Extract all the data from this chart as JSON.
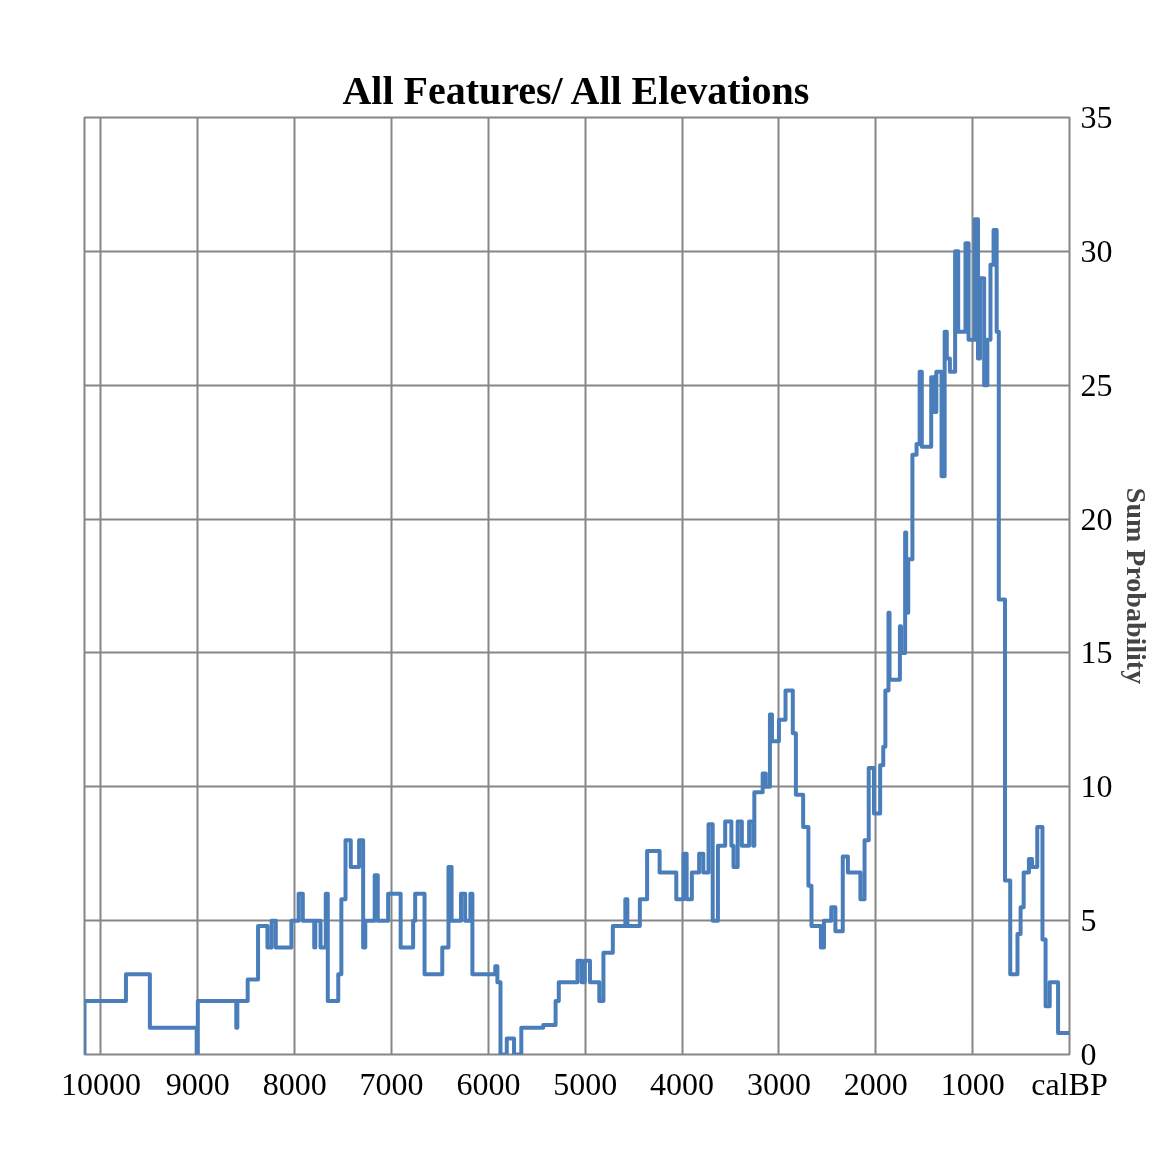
{
  "chart_data": {
    "type": "step",
    "title": "All Features/ All Elevations",
    "ylabel": "Sum Probability",
    "x": [
      10170,
      10170,
      9742,
      9495,
      9012,
      9000,
      8603,
      8592,
      8485,
      8378,
      8281,
      8238,
      8195,
      8034,
      7959,
      7916,
      7798,
      7787,
      7733,
      7679,
      7658,
      7550,
      7518,
      7475,
      7421,
      7335,
      7293,
      7271,
      7174,
      7142,
      7035,
      6906,
      6777,
      6756,
      6659,
      6476,
      6412,
      6380,
      6283,
      6240,
      6186,
      6165,
      5929,
      5907,
      5875,
      5810,
      5735,
      5660,
      5434,
      5306,
      5273,
      5080,
      5037,
      5005,
      4951,
      4855,
      4812,
      4715,
      4586,
      4565,
      4436,
      4361,
      4232,
      4060,
      3985,
      3953,
      3899,
      3824,
      3781,
      3727,
      3684,
      3630,
      3555,
      3491,
      3469,
      3426,
      3383,
      3308,
      3265,
      3254,
      3168,
      3136,
      3093,
      3072,
      3000,
      2932,
      2857,
      2825,
      2750,
      2696,
      2664,
      2567,
      2535,
      2460,
      2417,
      2341,
      2288,
      2159,
      2116,
      2073,
      2019,
      1955,
      1923,
      1901,
      1869,
      1858,
      1751,
      1740,
      1697,
      1686,
      1665,
      1622,
      1579,
      1547,
      1525,
      1428,
      1396,
      1375,
      1321,
      1289,
      1267,
      1235,
      1181,
      1149,
      1074,
      1042,
      977,
      945,
      924,
      881,
      848,
      816,
      784,
      752,
      730,
      666,
      612,
      537,
      505,
      473,
      419,
      387,
      333,
      279,
      247,
      204,
      118,
      0
    ],
    "values": [
      0,
      2,
      3,
      1,
      0,
      2,
      1,
      2,
      2.8,
      4.8,
      4,
      5,
      4,
      5,
      6,
      5,
      4,
      5,
      4,
      6,
      2,
      3,
      5.8,
      8,
      7,
      8,
      4,
      5,
      6.7,
      5,
      6,
      4,
      5,
      6,
      3,
      4,
      7,
      5,
      6,
      5,
      6,
      3,
      3.3,
      2.7,
      0,
      0.6,
      0,
      1,
      1.1,
      2,
      2.7,
      3.5,
      2.7,
      3.5,
      2.7,
      2,
      3.8,
      4.8,
      5.8,
      4.8,
      5.8,
      7.6,
      6.8,
      5.8,
      7.5,
      5.8,
      6.8,
      7.5,
      6.8,
      8.6,
      5,
      7.8,
      8.7,
      7.8,
      7,
      8.7,
      7.8,
      8.7,
      7.8,
      9.8,
      10.5,
      10,
      12.7,
      11.7,
      12.5,
      13.6,
      12,
      9.7,
      8.5,
      6.3,
      4.8,
      4,
      5,
      5.5,
      4.6,
      7.4,
      6.8,
      5.8,
      8,
      10.7,
      9,
      10.8,
      11.5,
      13.6,
      16.5,
      14,
      16,
      15,
      19.5,
      16.5,
      18.5,
      22.4,
      22.8,
      25.5,
      22.7,
      25.3,
      24,
      25.5,
      21.6,
      27,
      26,
      25.5,
      30,
      27,
      30.3,
      26.7,
      31.2,
      26,
      29,
      25,
      26.7,
      29.5,
      30.8,
      27,
      17,
      6.5,
      3,
      4.5,
      5.5,
      6.8,
      7.3,
      7,
      8.5,
      4.3,
      1.8,
      2.7,
      0.8,
      0.8
    ],
    "color": "#4a7ebb",
    "xlim": [
      10170,
      0
    ],
    "xticks": [
      10000,
      9000,
      8000,
      7000,
      6000,
      5000,
      4000,
      3000,
      2000,
      1000,
      {
        "value": 0,
        "label": "calBP"
      }
    ],
    "ylim": [
      0,
      35
    ],
    "yticks": [
      0,
      5,
      10,
      15,
      20,
      25,
      30,
      35
    ],
    "grid": true
  }
}
